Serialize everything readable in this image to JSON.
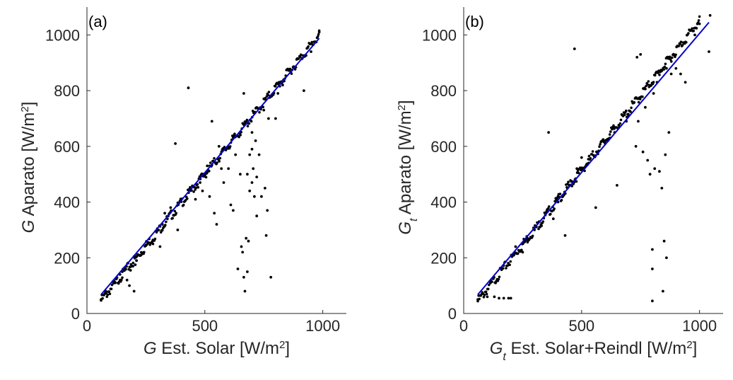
{
  "chart_data": [
    {
      "type": "scatter",
      "panel_label": "(a)",
      "xlabel_symbol": "G",
      "xlabel_text": " Est. Solar [W/m",
      "ylabel_symbol": "G",
      "ylabel_text": " Aparato [W/m",
      "unit_power": "2",
      "unit_close": "]",
      "xlim": [
        0,
        1100
      ],
      "ylim": [
        0,
        1100
      ],
      "xticks": [
        0,
        500,
        1000
      ],
      "yticks": [
        0,
        200,
        400,
        600,
        800,
        1000
      ],
      "fit_line": {
        "color": "#0000cc",
        "x": [
          60,
          985
        ],
        "y": [
          68,
          988
        ]
      },
      "band": {
        "x_start": 60,
        "x_end": 985,
        "slope": 1.03,
        "intercept": -15
      },
      "points": [
        [
          60,
          50
        ],
        [
          80,
          80
        ],
        [
          120,
          110
        ],
        [
          140,
          140
        ],
        [
          150,
          150
        ],
        [
          160,
          165
        ],
        [
          170,
          120
        ],
        [
          180,
          100
        ],
        [
          185,
          155
        ],
        [
          195,
          170
        ],
        [
          200,
          80
        ],
        [
          205,
          175
        ],
        [
          210,
          190
        ],
        [
          230,
          210
        ],
        [
          240,
          215
        ],
        [
          250,
          245
        ],
        [
          260,
          255
        ],
        [
          280,
          250
        ],
        [
          300,
          300
        ],
        [
          310,
          240
        ],
        [
          320,
          320
        ],
        [
          330,
          360
        ],
        [
          355,
          380
        ],
        [
          375,
          610
        ],
        [
          385,
          300
        ],
        [
          400,
          410
        ],
        [
          430,
          810
        ],
        [
          460,
          410
        ],
        [
          480,
          470
        ],
        [
          490,
          440
        ],
        [
          500,
          500
        ],
        [
          510,
          530
        ],
        [
          520,
          420
        ],
        [
          530,
          690
        ],
        [
          540,
          360
        ],
        [
          550,
          320
        ],
        [
          560,
          600
        ],
        [
          570,
          520
        ],
        [
          580,
          470
        ],
        [
          600,
          520
        ],
        [
          610,
          390
        ],
        [
          620,
          370
        ],
        [
          630,
          570
        ],
        [
          640,
          160
        ],
        [
          650,
          500
        ],
        [
          655,
          240
        ],
        [
          660,
          220
        ],
        [
          665,
          130
        ],
        [
          665,
          790
        ],
        [
          670,
          80
        ],
        [
          670,
          680
        ],
        [
          675,
          270
        ],
        [
          680,
          150
        ],
        [
          680,
          500
        ],
        [
          685,
          260
        ],
        [
          690,
          570
        ],
        [
          690,
          440
        ],
        [
          700,
          590
        ],
        [
          700,
          650
        ],
        [
          700,
          470
        ],
        [
          705,
          520
        ],
        [
          710,
          420
        ],
        [
          715,
          620
        ],
        [
          720,
          490
        ],
        [
          720,
          350
        ],
        [
          730,
          570
        ],
        [
          740,
          420
        ],
        [
          750,
          730
        ],
        [
          755,
          450
        ],
        [
          760,
          280
        ],
        [
          765,
          370
        ],
        [
          770,
          700
        ],
        [
          780,
          130
        ],
        [
          800,
          700
        ],
        [
          810,
          790
        ],
        [
          830,
          820
        ],
        [
          920,
          800
        ],
        [
          950,
          940
        ],
        [
          985,
          1010
        ]
      ]
    },
    {
      "type": "scatter",
      "panel_label": "(b)",
      "xlabel_symbol": "G",
      "xlabel_sub": "t",
      "xlabel_text": " Est. Solar+Reindl [W/m",
      "ylabel_symbol": "G",
      "ylabel_sub": "t",
      "ylabel_text": " Aparato [W/m",
      "unit_power": "2",
      "unit_close": "]",
      "xlim": [
        0,
        1100
      ],
      "ylim": [
        0,
        1100
      ],
      "xticks": [
        0,
        500,
        1000
      ],
      "yticks": [
        0,
        200,
        400,
        600,
        800,
        1000
      ],
      "fit_line": {
        "color": "#0000cc",
        "x": [
          60,
          1040
        ],
        "y": [
          68,
          1045
        ]
      },
      "band": {
        "x_start": 60,
        "x_end": 1000,
        "slope": 1.07,
        "intercept": -20
      },
      "points": [
        [
          60,
          50
        ],
        [
          100,
          60
        ],
        [
          130,
          60
        ],
        [
          150,
          55
        ],
        [
          170,
          55
        ],
        [
          190,
          55
        ],
        [
          200,
          55
        ],
        [
          220,
          240
        ],
        [
          250,
          220
        ],
        [
          270,
          270
        ],
        [
          300,
          300
        ],
        [
          320,
          330
        ],
        [
          330,
          315
        ],
        [
          360,
          650
        ],
        [
          380,
          340
        ],
        [
          400,
          400
        ],
        [
          430,
          280
        ],
        [
          440,
          450
        ],
        [
          470,
          950
        ],
        [
          480,
          520
        ],
        [
          500,
          560
        ],
        [
          530,
          540
        ],
        [
          560,
          380
        ],
        [
          600,
          610
        ],
        [
          620,
          630
        ],
        [
          640,
          650
        ],
        [
          650,
          460
        ],
        [
          690,
          690
        ],
        [
          700,
          710
        ],
        [
          730,
          600
        ],
        [
          735,
          920
        ],
        [
          740,
          690
        ],
        [
          750,
          930
        ],
        [
          760,
          580
        ],
        [
          770,
          740
        ],
        [
          780,
          550
        ],
        [
          790,
          500
        ],
        [
          800,
          230
        ],
        [
          800,
          45
        ],
        [
          800,
          160
        ],
        [
          805,
          790
        ],
        [
          810,
          520
        ],
        [
          820,
          830
        ],
        [
          830,
          510
        ],
        [
          840,
          450
        ],
        [
          845,
          80
        ],
        [
          850,
          260
        ],
        [
          855,
          570
        ],
        [
          860,
          200
        ],
        [
          860,
          880
        ],
        [
          870,
          650
        ],
        [
          880,
          860
        ],
        [
          900,
          880
        ],
        [
          920,
          860
        ],
        [
          940,
          830
        ],
        [
          980,
          1000
        ],
        [
          1000,
          1040
        ],
        [
          1040,
          940
        ],
        [
          1045,
          1070
        ]
      ]
    }
  ]
}
